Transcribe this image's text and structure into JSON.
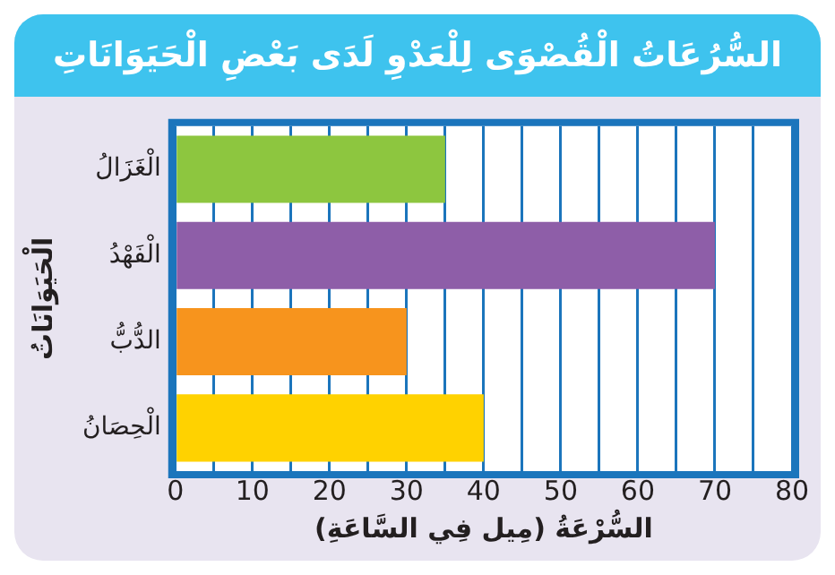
{
  "chart_data": {
    "type": "bar",
    "orientation": "horizontal",
    "title": "السُّرُعَاتُ الْقُصْوَى لِلْعَدْوِ لَدَى بَعْضِ الْحَيَوَانَاتِ",
    "xlabel": "السُّرْعَةُ (مِيل فِي السَّاعَةِ)",
    "ylabel": "الْحَيَوَانَاتُ",
    "categories": [
      "الْغَزَالُ",
      "الْفَهْدُ",
      "الدُّبُّ",
      "الْحِصَانُ"
    ],
    "values": [
      35,
      70,
      30,
      40
    ],
    "colors": [
      "#8dc63f",
      "#8e5ea8",
      "#f7941d",
      "#ffd200"
    ],
    "xlim": [
      0,
      80
    ],
    "xticks": [
      0,
      {
        "value": 5,
        "label": null
      },
      10,
      {
        "value": 15,
        "label": null
      },
      20,
      {
        "value": 25,
        "label": null
      },
      30,
      {
        "value": 35,
        "label": null
      },
      40,
      {
        "value": 45,
        "label": null
      },
      50,
      {
        "value": 55,
        "label": null
      },
      60,
      {
        "value": 65,
        "label": null
      },
      70,
      {
        "value": 75,
        "label": null
      },
      80
    ],
    "grid": "x",
    "legend": false
  }
}
